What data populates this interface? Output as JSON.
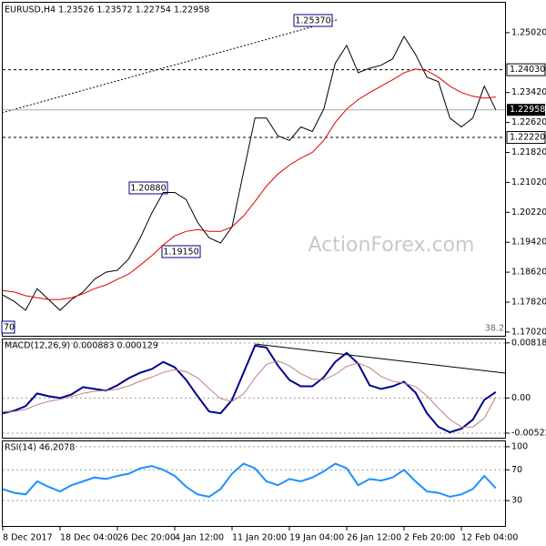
{
  "chart_data": [
    {
      "type": "line",
      "title": "EURUSD,H4 1.23526 1.23572 1.22754 1.22958",
      "series": [
        {
          "color": "#000000",
          "values": [
            1.1801,
            1.1784,
            1.176,
            1.1818,
            1.1789,
            1.176,
            1.1789,
            1.1809,
            1.1843,
            1.1862,
            1.1867,
            1.1898,
            1.1954,
            1.202,
            1.2075,
            1.2075,
            1.2056,
            1.1995,
            1.1954,
            1.194,
            1.1983,
            1.2129,
            1.2274,
            1.2274,
            1.2226,
            1.2214,
            1.225,
            1.2238,
            1.2298,
            1.242,
            1.2468,
            1.2395,
            1.2407,
            1.2415,
            1.2432,
            1.2492,
            1.2444,
            1.2383,
            1.2371,
            1.2274,
            1.225,
            1.2274,
            1.2359,
            1.22958
          ]
        },
        {
          "color": "#e00000",
          "values": [
            1.1813,
            1.1809,
            1.1799,
            1.1794,
            1.1789,
            1.1789,
            1.1794,
            1.1804,
            1.1818,
            1.1828,
            1.1843,
            1.1857,
            1.1881,
            1.1906,
            1.1935,
            1.1959,
            1.1971,
            1.1976,
            1.1971,
            1.1971,
            1.1983,
            1.2012,
            1.2051,
            1.2092,
            1.2124,
            1.2148,
            1.2167,
            1.2182,
            1.2214,
            1.2262,
            1.2298,
            1.2323,
            1.2342,
            1.2359,
            1.2376,
            1.2395,
            1.2405,
            1.24,
            1.2383,
            1.2359,
            1.2342,
            1.2332,
            1.2327,
            1.233
          ]
        }
      ],
      "ylim": [
        1.1692,
        1.2582
      ],
      "yticks": [
        {
          "value": 1.2502,
          "label": "1.25020"
        },
        {
          "value": 1.2342,
          "label": "1.23420"
        },
        {
          "value": 1.2262,
          "label": "1.22620"
        },
        {
          "value": 1.2182,
          "label": "1.21820"
        },
        {
          "value": 1.2102,
          "label": "1.21020"
        },
        {
          "value": 1.2022,
          "label": "1.20220"
        },
        {
          "value": 1.1942,
          "label": "1.19420"
        },
        {
          "value": 1.1862,
          "label": "1.18620"
        },
        {
          "value": 1.1782,
          "label": "1.17820"
        },
        {
          "value": 1.1702,
          "label": "1.17020"
        }
      ],
      "levels": [
        {
          "value": 1.2403,
          "label": "1.24030"
        },
        {
          "value": 1.2222,
          "label": "1.22220"
        }
      ],
      "current_price": 1.22958,
      "annotations": [
        "1.25370",
        "1.20880",
        "1.19150",
        "70",
        "38.2"
      ],
      "watermark": "ActionForex.com"
    },
    {
      "type": "line",
      "title": "MACD(12,26,9) 0.000883 0.000129",
      "series": [
        {
          "color": "#00008b",
          "values": [
            -0.00228,
            -0.00188,
            -0.00121,
            0.00067,
            0.00027,
            0,
            0.00054,
            0.00161,
            0.00134,
            0.00107,
            0.00188,
            0.00295,
            0.00375,
            0.00429,
            0.00536,
            0.00456,
            0.00268,
            0.00027,
            -0.00201,
            -0.00228,
            -0.00027,
            0.00375,
            0.00777,
            0.0075,
            0.00482,
            0.00268,
            0.00174,
            0.00174,
            0.00308,
            0.00536,
            0.0067,
            0.00509,
            0.00188,
            0.00134,
            0.00174,
            0.00241,
            0.0008,
            -0.00228,
            -0.00429,
            -0.00509,
            -0.00456,
            -0.00322,
            -0.00027,
            0.000883
          ]
        },
        {
          "color": "#c08080",
          "values": [
            -0.002,
            -0.002,
            -0.0017,
            -0.001,
            -0.0005,
            -0.0002,
            0.0002,
            0.0007,
            0.001,
            0.0011,
            0.0013,
            0.0018,
            0.0025,
            0.0031,
            0.0038,
            0.0042,
            0.0039,
            0.003,
            0.0014,
            -0.0001,
            -0.0005,
            0.0006,
            0.003,
            0.005,
            0.0055,
            0.0048,
            0.0036,
            0.0028,
            0.0027,
            0.0035,
            0.0047,
            0.0052,
            0.0045,
            0.0032,
            0.0025,
            0.0022,
            0.0017,
            0.0003,
            -0.0015,
            -0.0032,
            -0.0043,
            -0.0043,
            -0.003,
            0.000129
          ]
        }
      ],
      "ylim": [
        -0.0059,
        0.0087
      ],
      "yticks": [
        0.008182,
        {
          "value": 0,
          "label": "0.00"
        },
        -0.005223
      ]
    },
    {
      "type": "line",
      "title": "RSI(14) 46.2078",
      "series": [
        {
          "color": "#1e90ff",
          "values": [
            45,
            40,
            38,
            55,
            48,
            42,
            50,
            55,
            60,
            58,
            62,
            65,
            72,
            75,
            70,
            62,
            48,
            38,
            35,
            45,
            65,
            78,
            72,
            55,
            50,
            58,
            55,
            60,
            68,
            78,
            72,
            50,
            58,
            56,
            60,
            70,
            55,
            42,
            40,
            35,
            38,
            45,
            62,
            46.2078
          ]
        }
      ],
      "ylim": [
        -3,
        107
      ],
      "yticks": [
        100,
        70,
        30
      ],
      "categories": [
        "8 Dec 2017",
        null,
        null,
        null,
        null,
        "18 Dec 04:00",
        null,
        null,
        null,
        null,
        "26 Dec 20:00",
        null,
        null,
        null,
        null,
        "4 Jan 12:00",
        null,
        null,
        null,
        null,
        "11 Jan 20:00",
        null,
        null,
        null,
        null,
        "19 Jan 04:00",
        null,
        null,
        null,
        null,
        "26 Jan 12:00",
        null,
        null,
        null,
        null,
        "2 Feb 20:00",
        null,
        null,
        null,
        null,
        "12 Feb 04:00",
        null,
        null,
        null
      ]
    }
  ]
}
